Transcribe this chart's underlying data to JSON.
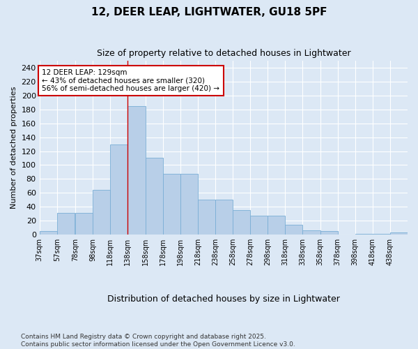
{
  "title": "12, DEER LEAP, LIGHTWATER, GU18 5PF",
  "subtitle": "Size of property relative to detached houses in Lightwater",
  "xlabel": "Distribution of detached houses by size in Lightwater",
  "ylabel": "Number of detached properties",
  "bar_labels": [
    "37sqm",
    "57sqm",
    "78sqm",
    "98sqm",
    "118sqm",
    "138sqm",
    "158sqm",
    "178sqm",
    "198sqm",
    "218sqm",
    "238sqm",
    "258sqm",
    "278sqm",
    "298sqm",
    "318sqm",
    "338sqm",
    "358sqm",
    "378sqm",
    "398sqm",
    "418sqm",
    "438sqm"
  ],
  "bar_heights": [
    5,
    31,
    31,
    64,
    130,
    185,
    110,
    87,
    87,
    50,
    50,
    35,
    27,
    27,
    14,
    6,
    5,
    0,
    1,
    1,
    3
  ],
  "bins_left": [
    37,
    57,
    78,
    98,
    118,
    138,
    158,
    178,
    198,
    218,
    238,
    258,
    278,
    298,
    318,
    338,
    358,
    378,
    398,
    418,
    438
  ],
  "bin_width": 20,
  "bar_color": "#b8cfe8",
  "bar_edge_color": "#7aaed6",
  "background_color": "#dce8f5",
  "grid_color": "#ffffff",
  "red_line_x": 138,
  "annotation_title": "12 DEER LEAP: 129sqm",
  "annotation_line1": "← 43% of detached houses are smaller (320)",
  "annotation_line2": "56% of semi-detached houses are larger (420) →",
  "annotation_box_facecolor": "#ffffff",
  "annotation_box_edgecolor": "#cc0000",
  "footer_line1": "Contains HM Land Registry data © Crown copyright and database right 2025.",
  "footer_line2": "Contains public sector information licensed under the Open Government Licence v3.0.",
  "ylim": [
    0,
    250
  ],
  "yticks": [
    0,
    20,
    40,
    60,
    80,
    100,
    120,
    140,
    160,
    180,
    200,
    220,
    240
  ]
}
